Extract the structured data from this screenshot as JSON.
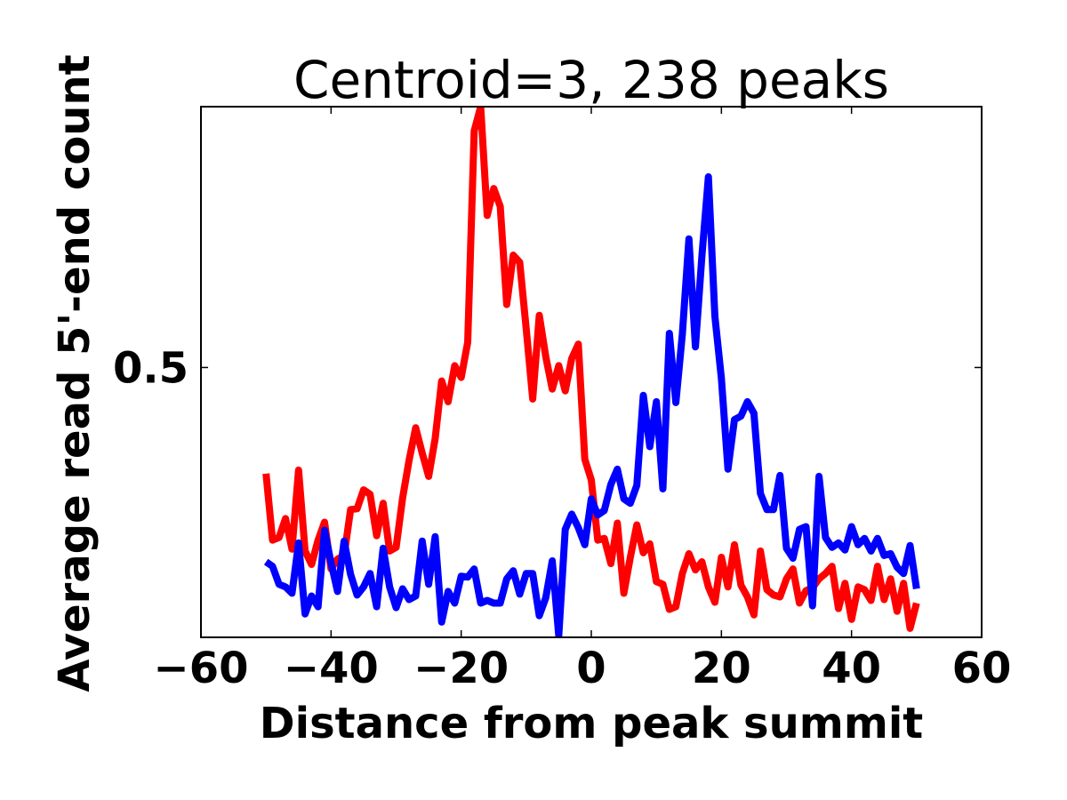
{
  "chart_data": {
    "type": "line",
    "title": "Centroid=3, 238 peaks",
    "xlabel": "Distance from peak summit",
    "ylabel": "Average read 5'-end count",
    "xlim": [
      -60,
      60
    ],
    "ylim": [
      0.2,
      0.79
    ],
    "xticks": [
      -60,
      -40,
      -20,
      0,
      20,
      40,
      60
    ],
    "xtick_labels": [
      "−60",
      "−40",
      "−20",
      "0",
      "20",
      "40",
      "60"
    ],
    "yticks": [
      0.5
    ],
    "ytick_labels": [
      "0.5"
    ],
    "grid": false,
    "x_start": -50,
    "x_step": 1,
    "series": [
      {
        "color": "#ff0000",
        "values": [
          0.382,
          0.308,
          0.311,
          0.332,
          0.298,
          0.386,
          0.296,
          0.281,
          0.308,
          0.328,
          0.276,
          0.287,
          0.291,
          0.342,
          0.343,
          0.364,
          0.359,
          0.313,
          0.349,
          0.296,
          0.3,
          0.355,
          0.397,
          0.433,
          0.405,
          0.379,
          0.421,
          0.485,
          0.462,
          0.502,
          0.489,
          0.528,
          0.763,
          0.79,
          0.669,
          0.699,
          0.679,
          0.57,
          0.625,
          0.617,
          0.543,
          0.465,
          0.558,
          0.512,
          0.476,
          0.502,
          0.474,
          0.51,
          0.526,
          0.398,
          0.375,
          0.308,
          0.31,
          0.282,
          0.327,
          0.249,
          0.289,
          0.325,
          0.294,
          0.304,
          0.262,
          0.259,
          0.231,
          0.234,
          0.271,
          0.293,
          0.275,
          0.284,
          0.256,
          0.239,
          0.289,
          0.256,
          0.303,
          0.258,
          0.245,
          0.225,
          0.296,
          0.253,
          0.247,
          0.245,
          0.265,
          0.276,
          0.238,
          0.252,
          0.255,
          0.265,
          0.271,
          0.279,
          0.232,
          0.26,
          0.22,
          0.256,
          0.253,
          0.241,
          0.279,
          0.242,
          0.265,
          0.229,
          0.26,
          0.21,
          0.238
        ]
      },
      {
        "color": "#0000ff",
        "values": [
          0.284,
          0.279,
          0.259,
          0.256,
          0.249,
          0.305,
          0.226,
          0.246,
          0.234,
          0.319,
          0.283,
          0.251,
          0.307,
          0.27,
          0.247,
          0.256,
          0.271,
          0.234,
          0.299,
          0.256,
          0.233,
          0.254,
          0.242,
          0.246,
          0.307,
          0.259,
          0.312,
          0.217,
          0.251,
          0.238,
          0.268,
          0.267,
          0.276,
          0.238,
          0.241,
          0.238,
          0.238,
          0.265,
          0.274,
          0.248,
          0.271,
          0.271,
          0.224,
          0.244,
          0.285,
          0.202,
          0.32,
          0.337,
          0.322,
          0.303,
          0.354,
          0.336,
          0.341,
          0.37,
          0.387,
          0.354,
          0.349,
          0.369,
          0.469,
          0.412,
          0.462,
          0.365,
          0.538,
          0.461,
          0.537,
          0.643,
          0.523,
          0.624,
          0.712,
          0.557,
          0.488,
          0.387,
          0.442,
          0.446,
          0.462,
          0.449,
          0.36,
          0.342,
          0.342,
          0.38,
          0.299,
          0.288,
          0.32,
          0.323,
          0.235,
          0.379,
          0.311,
          0.3,
          0.305,
          0.297,
          0.323,
          0.303,
          0.31,
          0.296,
          0.31,
          0.291,
          0.293,
          0.278,
          0.271,
          0.302,
          0.254
        ]
      }
    ]
  }
}
